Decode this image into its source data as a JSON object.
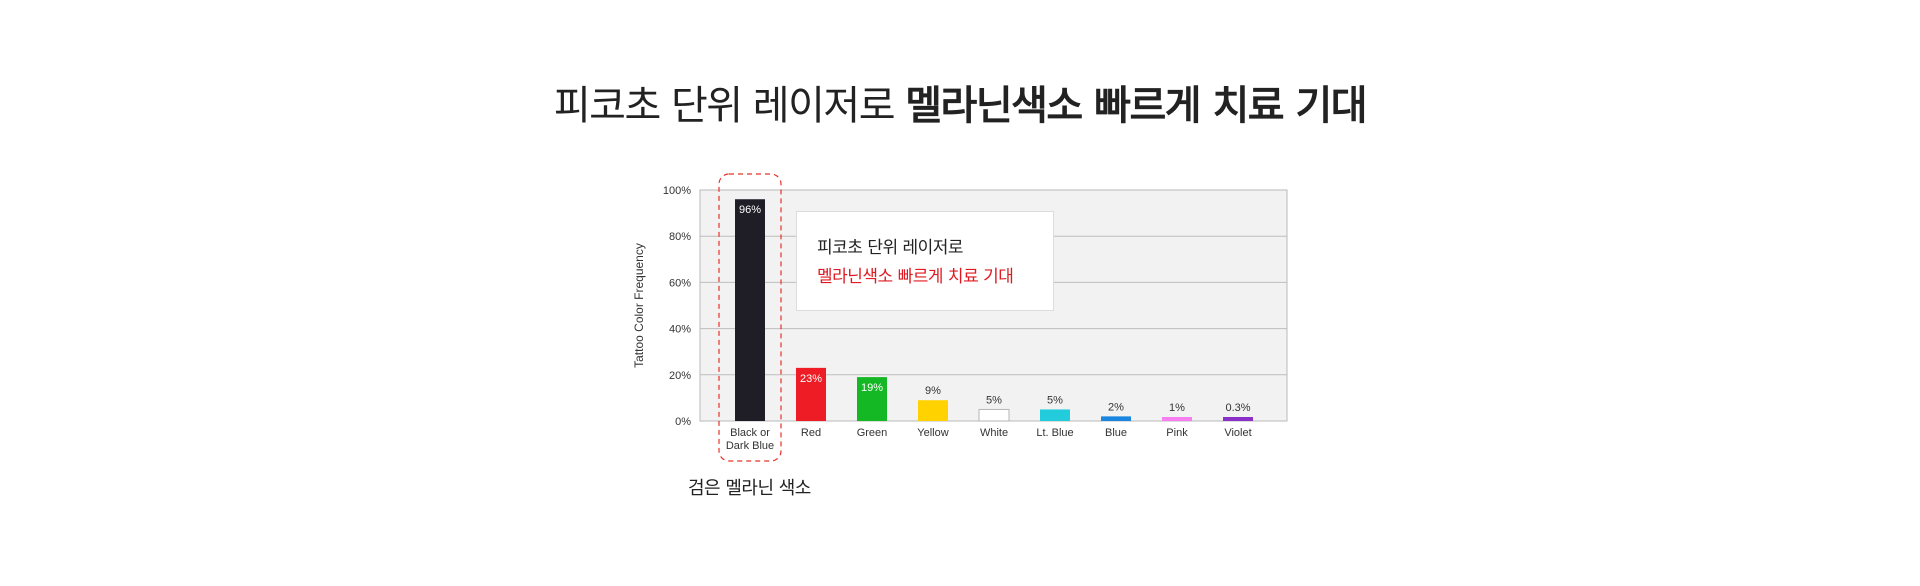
{
  "title": {
    "normal": "피코초 단위 레이저로 ",
    "bold": "멜라닌색소 빠르게 치료 기대"
  },
  "callout": {
    "line1": "피코초 단위 레이저로",
    "line2": "멜라닌색소 빠르게 치료 기대"
  },
  "highlight_caption": "검은 멜라닌 색소",
  "chart_data": {
    "type": "bar",
    "ylabel": "Tattoo Color Frequency",
    "xlabel": "",
    "ylim": [
      0,
      100
    ],
    "yticks": [
      "0%",
      "20%",
      "40%",
      "60%",
      "80%",
      "100%"
    ],
    "grid": true,
    "categories": [
      "Black or\nDark Blue",
      "Red",
      "Green",
      "Yellow",
      "White",
      "Lt. Blue",
      "Blue",
      "Pink",
      "Violet"
    ],
    "values": [
      96,
      23,
      19,
      9,
      5,
      5,
      2,
      1,
      0.3
    ],
    "value_labels": [
      "96%",
      "23%",
      "19%",
      "9%",
      "5%",
      "5%",
      "2%",
      "1%",
      "0.3%"
    ],
    "colors": [
      "#1f1e26",
      "#ee1c25",
      "#14b824",
      "#ffd200",
      "#ffffff",
      "#22ccdd",
      "#1a86e0",
      "#f67ef0",
      "#8a2fc7"
    ],
    "highlighted_category": "Black or\nDark Blue"
  }
}
